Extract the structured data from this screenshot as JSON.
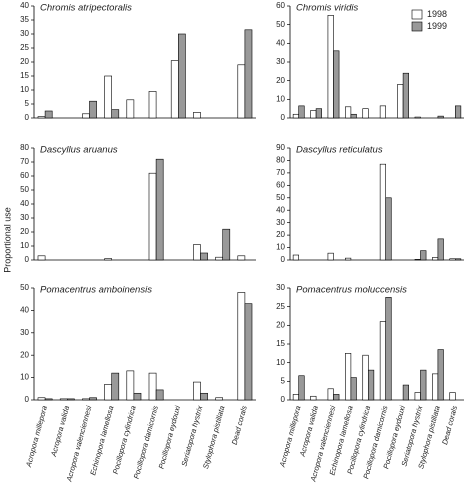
{
  "ylabel": "Proportional use",
  "chart_data": [
    {
      "type": "bar",
      "title": "Chromis atripectoralis",
      "ylim": [
        0,
        40
      ],
      "yticks": [
        0,
        5,
        10,
        15,
        20,
        25,
        30,
        35,
        40
      ],
      "series": [
        {
          "name": "1998",
          "color": "#ffffff",
          "values": [
            0.5,
            0,
            1.5,
            15,
            6.5,
            9.5,
            20.5,
            2,
            0,
            19
          ]
        },
        {
          "name": "1999",
          "color": "#999999",
          "values": [
            2.5,
            0,
            6,
            3,
            0,
            0,
            30,
            0,
            0,
            31.5
          ]
        }
      ]
    },
    {
      "type": "bar",
      "title": "Chromis viridis",
      "ylim": [
        0,
        60
      ],
      "yticks": [
        0,
        10,
        20,
        30,
        40,
        50,
        60
      ],
      "legend": "upper right",
      "series": [
        {
          "name": "1998",
          "color": "#ffffff",
          "values": [
            2,
            4,
            55,
            6,
            5,
            6.5,
            18,
            0.5,
            0,
            0
          ]
        },
        {
          "name": "1999",
          "color": "#999999",
          "values": [
            6.5,
            5,
            36,
            2,
            0,
            0,
            24,
            0,
            1,
            6.5
          ]
        }
      ]
    },
    {
      "type": "bar",
      "title": "Dascyllus aruanus",
      "ylim": [
        0,
        80
      ],
      "yticks": [
        0,
        10,
        20,
        30,
        40,
        50,
        60,
        70,
        80
      ],
      "series": [
        {
          "name": "1998",
          "color": "#ffffff",
          "values": [
            3,
            0,
            0,
            1,
            0,
            62,
            0,
            11,
            2,
            3
          ]
        },
        {
          "name": "1999",
          "color": "#999999",
          "values": [
            0,
            0,
            0,
            0,
            0,
            72,
            0,
            5,
            22,
            0
          ]
        }
      ]
    },
    {
      "type": "bar",
      "title": "Dascyllus reticulatus",
      "ylim": [
        0,
        90
      ],
      "yticks": [
        0,
        10,
        20,
        30,
        40,
        50,
        60,
        70,
        80,
        90
      ],
      "series": [
        {
          "name": "1998",
          "color": "#ffffff",
          "values": [
            4,
            0,
            5.5,
            1.5,
            0,
            77,
            0,
            0.5,
            2,
            1
          ]
        },
        {
          "name": "1999",
          "color": "#999999",
          "values": [
            0,
            0,
            0,
            0,
            0,
            50,
            0,
            7.5,
            17,
            1
          ]
        }
      ]
    },
    {
      "type": "bar",
      "title": "Pomacentrus amboinensis",
      "ylim": [
        0,
        50
      ],
      "yticks": [
        0,
        10,
        20,
        30,
        40,
        50
      ],
      "categories": [
        "Acropora millepora",
        "Acropora valida",
        "Acropora valenciennesi",
        "Echinopora lamellosa",
        "Pocillopora cylindrica",
        "Pocillopora damicornis",
        "Pocillopora eydouxi",
        "Seriatopora hystrix",
        "Stylophora pistillata",
        "Dead corals"
      ],
      "series": [
        {
          "name": "1998",
          "color": "#ffffff",
          "values": [
            1,
            0.5,
            0.5,
            7,
            13,
            12,
            0,
            8,
            1,
            48
          ]
        },
        {
          "name": "1999",
          "color": "#999999",
          "values": [
            0.5,
            0.5,
            1,
            12,
            3,
            4.5,
            0,
            3,
            0,
            43
          ]
        }
      ]
    },
    {
      "type": "bar",
      "title": "Pomacentrus moluccensis",
      "ylim": [
        0,
        30
      ],
      "yticks": [
        0,
        5,
        10,
        15,
        20,
        25,
        30
      ],
      "categories": [
        "Acropora millepora",
        "Acropora valida",
        "Acropora valenciennesi",
        "Echinopora lamellosa",
        "Pocillopora cylindrica",
        "Pocillopora damicornis",
        "Pocillopora eydouxi",
        "Seriatopora hystrix",
        "Stylophora pistillata",
        "Dead corals"
      ],
      "series": [
        {
          "name": "1998",
          "color": "#ffffff",
          "values": [
            1.5,
            1,
            3,
            12.5,
            12,
            21,
            0,
            2,
            7,
            2
          ]
        },
        {
          "name": "1999",
          "color": "#999999",
          "values": [
            6.5,
            0,
            1.5,
            6,
            8,
            27.5,
            4,
            8,
            13.5,
            0
          ]
        }
      ]
    }
  ]
}
